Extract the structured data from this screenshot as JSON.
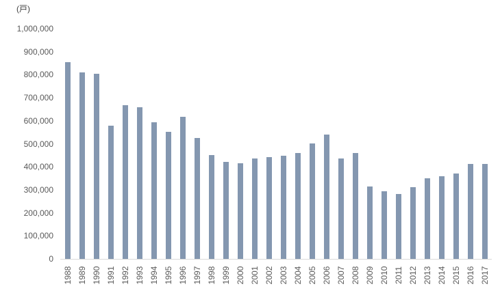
{
  "chart_data": {
    "type": "bar",
    "title": "",
    "unit_label": "(戸)",
    "xlabel": "",
    "ylabel": "",
    "categories": [
      "1988",
      "1989",
      "1990",
      "1991",
      "1992",
      "1993",
      "1994",
      "1995",
      "1996",
      "1997",
      "1998",
      "1999",
      "2000",
      "2001",
      "2002",
      "2003",
      "2004",
      "2005",
      "2006",
      "2007",
      "2008",
      "2009",
      "2010",
      "2011",
      "2012",
      "2013",
      "2014",
      "2015",
      "2016",
      "2017"
    ],
    "values": [
      855000,
      811000,
      803000,
      580000,
      667000,
      660000,
      593000,
      551000,
      618000,
      526000,
      452000,
      420000,
      416000,
      435000,
      442000,
      447000,
      461000,
      500000,
      539000,
      437000,
      459000,
      316000,
      294000,
      281000,
      312000,
      350000,
      358000,
      372000,
      411000,
      411000
    ],
    "ylim": [
      0,
      1000000
    ],
    "ytick_step": 100000,
    "ytick_labels": [
      "0",
      "100,000",
      "200,000",
      "300,000",
      "400,000",
      "500,000",
      "600,000",
      "700,000",
      "800,000",
      "900,000",
      "1,000,000"
    ],
    "grid": false,
    "legend": "none",
    "bar_color": "#8497B0",
    "axis_line_color": "#D9D9D9",
    "tick_label_color": "#595959",
    "unit_label_color": "#404040"
  }
}
